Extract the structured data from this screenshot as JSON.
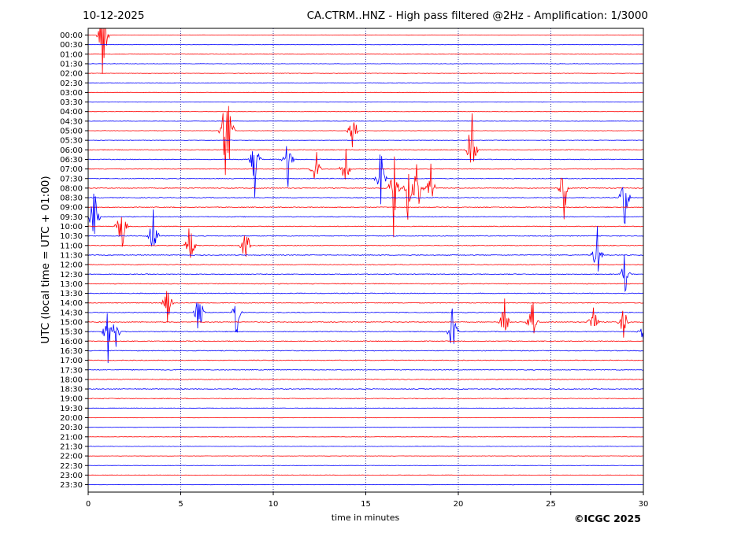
{
  "header": {
    "date": "10-12-2025",
    "title": "CA.CTRM..HNZ - High pass filtered @2Hz - Amplification: 1/3000"
  },
  "copyright": "©ICGC 2025",
  "colors": {
    "odd": "#ff0000",
    "even": "#0000ff",
    "grid": "#000080"
  },
  "chart_data": {
    "type": "line",
    "subtype": "helicorder",
    "title": "CA.CTRM..HNZ - High pass filtered @2Hz - Amplification: 1/3000",
    "xlabel": "time in minutes",
    "ylabel": "UTC (local time = UTC + 01:00)",
    "xlim": [
      0,
      30
    ],
    "xticks": [
      0,
      5,
      10,
      15,
      20,
      25,
      30
    ],
    "grid_x": true,
    "rows": [
      "00:00",
      "00:30",
      "01:00",
      "01:30",
      "02:00",
      "02:30",
      "03:00",
      "03:30",
      "04:00",
      "04:30",
      "05:00",
      "05:30",
      "06:00",
      "06:30",
      "07:00",
      "07:30",
      "08:00",
      "08:30",
      "09:00",
      "09:30",
      "10:00",
      "10:30",
      "11:00",
      "11:30",
      "12:00",
      "12:30",
      "13:00",
      "13:30",
      "14:00",
      "14:30",
      "15:00",
      "15:30",
      "16:00",
      "16:30",
      "17:00",
      "17:30",
      "18:00",
      "18:30",
      "19:00",
      "19:30",
      "20:00",
      "20:30",
      "21:00",
      "21:30",
      "22:00",
      "22:30",
      "23:00",
      "23:30"
    ],
    "row_colors": [
      "red",
      "blue"
    ],
    "events": [
      {
        "row": "00:00",
        "minute": 0.8,
        "amplitude": 7.0
      },
      {
        "row": "05:00",
        "minute": 7.4,
        "amplitude": 6.0
      },
      {
        "row": "05:00",
        "minute": 7.6,
        "amplitude": 5.5
      },
      {
        "row": "05:00",
        "minute": 14.3,
        "amplitude": 4.0
      },
      {
        "row": "06:00",
        "minute": 20.7,
        "amplitude": 6.5
      },
      {
        "row": "06:30",
        "minute": 9.0,
        "amplitude": 5.0
      },
      {
        "row": "06:30",
        "minute": 10.8,
        "amplitude": 3.5
      },
      {
        "row": "07:00",
        "minute": 12.3,
        "amplitude": 3.0
      },
      {
        "row": "07:00",
        "minute": 13.9,
        "amplitude": 3.0
      },
      {
        "row": "07:30",
        "minute": 15.8,
        "amplitude": 5.0
      },
      {
        "row": "08:00",
        "minute": 16.5,
        "amplitude": 6.0
      },
      {
        "row": "08:00",
        "minute": 17.3,
        "amplitude": 6.0
      },
      {
        "row": "08:00",
        "minute": 17.8,
        "amplitude": 6.0
      },
      {
        "row": "08:00",
        "minute": 18.5,
        "amplitude": 4.0
      },
      {
        "row": "08:00",
        "minute": 25.7,
        "amplitude": 5.0
      },
      {
        "row": "08:30",
        "minute": 29.0,
        "amplitude": 5.0
      },
      {
        "row": "09:30",
        "minute": 0.3,
        "amplitude": 6.0
      },
      {
        "row": "10:00",
        "minute": 1.8,
        "amplitude": 5.0
      },
      {
        "row": "10:30",
        "minute": 3.5,
        "amplitude": 5.0
      },
      {
        "row": "11:00",
        "minute": 5.5,
        "amplitude": 4.0
      },
      {
        "row": "11:00",
        "minute": 8.5,
        "amplitude": 4.0
      },
      {
        "row": "11:30",
        "minute": 27.5,
        "amplitude": 4.0
      },
      {
        "row": "12:30",
        "minute": 29.0,
        "amplitude": 3.0
      },
      {
        "row": "14:00",
        "minute": 4.3,
        "amplitude": 3.0
      },
      {
        "row": "14:30",
        "minute": 6.0,
        "amplitude": 4.0
      },
      {
        "row": "14:30",
        "minute": 8.0,
        "amplitude": 4.0
      },
      {
        "row": "15:30",
        "minute": 1.1,
        "amplitude": 5.0
      },
      {
        "row": "15:30",
        "minute": 1.4,
        "amplitude": 5.0
      },
      {
        "row": "15:30",
        "minute": 19.7,
        "amplitude": 4.0
      },
      {
        "row": "15:00",
        "minute": 22.5,
        "amplitude": 4.0
      },
      {
        "row": "15:00",
        "minute": 24.0,
        "amplitude": 3.5
      },
      {
        "row": "15:00",
        "minute": 27.3,
        "amplitude": 3.0
      },
      {
        "row": "15:00",
        "minute": 28.9,
        "amplitude": 3.5
      },
      {
        "row": "15:30",
        "minute": 30.0,
        "amplitude": 1.5
      }
    ]
  }
}
